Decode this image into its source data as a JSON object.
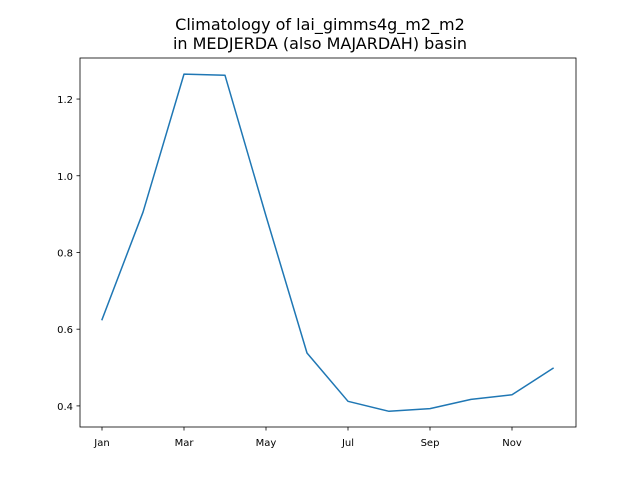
{
  "chart_data": {
    "type": "line",
    "title_lines": [
      "Climatology of lai_gimms4g_m2_m2",
      "in MEDJERDA (also MAJARDAH) basin"
    ],
    "xlabel": "",
    "ylabel": "",
    "x": [
      "Jan",
      "Feb",
      "Mar",
      "Apr",
      "May",
      "Jun",
      "Jul",
      "Aug",
      "Sep",
      "Oct",
      "Nov",
      "Dec"
    ],
    "xtick_labels": [
      "Jan",
      "Mar",
      "May",
      "Jul",
      "Sep",
      "Nov"
    ],
    "series": [
      {
        "values": [
          0.625,
          0.905,
          1.265,
          1.262,
          0.895,
          0.538,
          0.412,
          0.386,
          0.393,
          0.417,
          0.429,
          0.498
        ],
        "color": "#1f77b4"
      }
    ],
    "yticks": [
      0.4,
      0.6,
      0.8,
      1.0,
      1.2
    ],
    "ytick_labels": [
      "0.4",
      "0.6",
      "0.8",
      "1.0",
      "1.2"
    ],
    "ylim": [
      0.345,
      1.307
    ],
    "grid": false,
    "legend": "none"
  }
}
